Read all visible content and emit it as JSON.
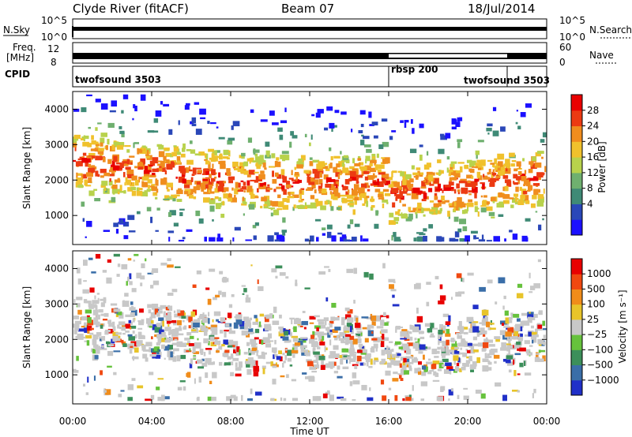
{
  "header": {
    "station": "Clyde River (fitACF)",
    "beam": "Beam 07",
    "date": "18/Jul/2014"
  },
  "strip_panels": {
    "nsky_label": "N.Sky",
    "nsky_ticks_left": [
      "10^5",
      "10^0"
    ],
    "nsky_ticks_right": [
      "10^5",
      "10^0"
    ],
    "nsearch_label": "N.Search",
    "freq_label": "Freq.",
    "freq_unit": "[MHz]",
    "freq_ticks_left": [
      "12",
      "8"
    ],
    "freq_ticks_right": [
      "60",
      "0"
    ],
    "nave_label": "Nave",
    "cpid_label": "CPID"
  },
  "chart_data": [
    {
      "type": "heatmap",
      "name": "power",
      "ylabel": "Slant Range [km]",
      "yticks": [
        1000,
        2000,
        3000,
        4000
      ],
      "ylim": [
        180,
        4500
      ],
      "colorbar": {
        "label": "Power [dB]",
        "ticks": [
          "28",
          "24",
          "20",
          "16",
          "12",
          "8",
          "4"
        ],
        "colors": [
          "#1b10ff",
          "#2a47b8",
          "#3f8a76",
          "#6fb06f",
          "#b8d24c",
          "#f0c12c",
          "#f08d1e",
          "#ec3a12",
          "#e90000"
        ]
      }
    },
    {
      "type": "heatmap",
      "name": "velocity",
      "ylabel": "Slant Range [km]",
      "yticks": [
        1000,
        2000,
        3000,
        4000
      ],
      "ylim": [
        180,
        4500
      ],
      "colorbar": {
        "label": "Velocity [m s⁻¹]",
        "ticks": [
          "1000",
          "500",
          "100",
          "25",
          "−25",
          "−100",
          "−500",
          "−1000"
        ],
        "colors": [
          "#2030c8",
          "#3a6ea8",
          "#3c8f5a",
          "#66c23c",
          "#c8c8c8",
          "#e8c42a",
          "#f08c1a",
          "#f04810",
          "#e80000"
        ]
      }
    }
  ],
  "xaxis": {
    "label": "Time UT",
    "ticks": [
      "00:00",
      "04:00",
      "08:00",
      "12:00",
      "16:00",
      "20:00",
      "00:00"
    ]
  },
  "cpid_segments": [
    {
      "label": "twofsound 3503",
      "start_h": 0,
      "end_h": 16
    },
    {
      "label": "rbsp 200",
      "start_h": 16,
      "end_h": 22
    },
    {
      "label": "twofsound 3503",
      "start_h": 22,
      "end_h": 24
    }
  ]
}
